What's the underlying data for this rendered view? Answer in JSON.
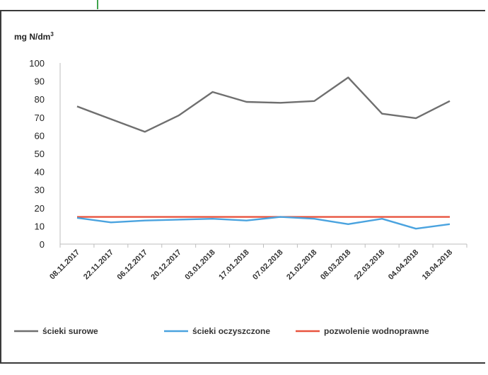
{
  "chart_data": {
    "type": "line",
    "ylabel_prefix": "mg N/dm",
    "ylabel_sup": "3",
    "ylim": [
      0,
      100
    ],
    "yticks": [
      0,
      10,
      20,
      30,
      40,
      50,
      60,
      70,
      80,
      90,
      100
    ],
    "grid": false,
    "legend_position": "bottom",
    "categories": [
      "08.11.2017",
      "22.11.2017",
      "06.12.2017",
      "20.12.2017",
      "03.01.2018",
      "17.01.2018",
      "07.02.2018",
      "21.02.2018",
      "08.03.2018",
      "22.03.2018",
      "04.04.2018",
      "18.04.2018"
    ],
    "series": [
      {
        "name": "ścieki surowe",
        "color": "#6f6f6f",
        "values": [
          76,
          69,
          62,
          71,
          84,
          78.5,
          78,
          79,
          92,
          72,
          69.5,
          79
        ]
      },
      {
        "name": "ścieki oczyszczone",
        "color": "#4aa3df",
        "values": [
          14.5,
          12,
          13,
          13.5,
          14,
          13,
          15,
          14,
          11,
          14,
          8.5,
          11
        ]
      },
      {
        "name": "pozwolenie wodnoprawne",
        "color": "#e8543f",
        "values": [
          15,
          15,
          15,
          15,
          15,
          15,
          15,
          15,
          15,
          15,
          15,
          15
        ]
      }
    ]
  }
}
